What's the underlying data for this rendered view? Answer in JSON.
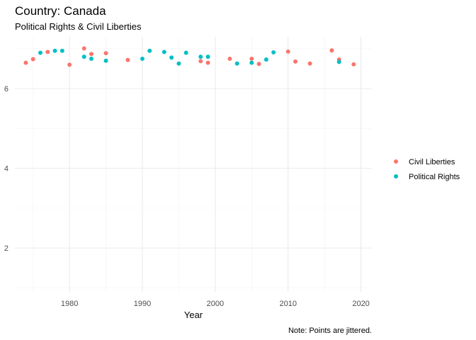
{
  "chart_data": {
    "type": "scatter",
    "title": "Country: Canada",
    "subtitle": "Political Rights & Civil Liberties",
    "xlabel": "Year",
    "ylabel": "",
    "caption": "Note: Points are jittered.",
    "xlim": [
      1972.5,
      2021.5
    ],
    "ylim": [
      0.9,
      7.3
    ],
    "x_ticks": [
      1980,
      1990,
      2000,
      2010,
      2020
    ],
    "y_ticks": [
      2,
      4,
      6
    ],
    "grid": true,
    "legend_position": "right",
    "series": [
      {
        "name": "Civil Liberties",
        "color": "#F8766D",
        "points": [
          [
            1974,
            6.65
          ],
          [
            1975,
            6.74
          ],
          [
            1977,
            6.92
          ],
          [
            1980,
            6.6
          ],
          [
            1982,
            7.01
          ],
          [
            1983,
            6.87
          ],
          [
            1985,
            6.89
          ],
          [
            1988,
            6.72
          ],
          [
            1998,
            6.69
          ],
          [
            1999,
            6.65
          ],
          [
            2002,
            6.75
          ],
          [
            2005,
            6.75
          ],
          [
            2006,
            6.62
          ],
          [
            2010,
            6.93
          ],
          [
            2011,
            6.68
          ],
          [
            2013,
            6.63
          ],
          [
            2016,
            6.96
          ],
          [
            2017,
            6.73
          ],
          [
            2019,
            6.61
          ]
        ]
      },
      {
        "name": "Political Rights",
        "color": "#00BFC4",
        "points": [
          [
            1976,
            6.9
          ],
          [
            1978,
            6.95
          ],
          [
            1979,
            6.95
          ],
          [
            1982,
            6.8
          ],
          [
            1983,
            6.75
          ],
          [
            1985,
            6.7
          ],
          [
            1990,
            6.75
          ],
          [
            1991,
            6.95
          ],
          [
            1993,
            6.92
          ],
          [
            1994,
            6.78
          ],
          [
            1995,
            6.63
          ],
          [
            1996,
            6.9
          ],
          [
            1998,
            6.8
          ],
          [
            1999,
            6.8
          ],
          [
            2003,
            6.63
          ],
          [
            2005,
            6.65
          ],
          [
            2007,
            6.73
          ],
          [
            2008,
            6.91
          ],
          [
            2017,
            6.67
          ]
        ]
      }
    ]
  }
}
